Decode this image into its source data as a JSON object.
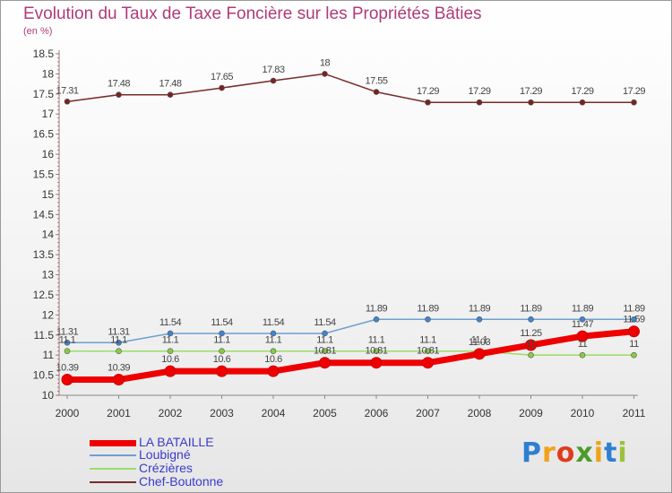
{
  "title": "Evolution du Taux de Taxe Foncière sur les Propriétés Bâties",
  "unit": "(en %)",
  "logo": {
    "letters": [
      {
        "ch": "P",
        "color": "#2f7fd1"
      },
      {
        "ch": "r",
        "color": "#f0a21a"
      },
      {
        "ch": "o",
        "color": "#e03b1e"
      },
      {
        "ch": "x",
        "color": "#4e9a2a"
      },
      {
        "ch": "i",
        "color": "#f0a21a"
      },
      {
        "ch": "t",
        "color": "#2f7fd1"
      },
      {
        "ch": "i",
        "color": "#9bc23c"
      }
    ]
  },
  "chart_data": {
    "type": "line",
    "title": "Evolution du Taux de Taxe Foncière sur les Propriétés Bâties",
    "ylabel": "(en %)",
    "xlabel": "",
    "ylim": [
      10,
      18.5
    ],
    "y_ticks": [
      "10",
      "10.5",
      "11",
      "11.5",
      "12",
      "12.5",
      "13",
      "13.5",
      "14",
      "14.5",
      "15",
      "15.5",
      "16",
      "16.5",
      "17",
      "17.5",
      "18",
      "18.5"
    ],
    "categories": [
      "2000",
      "2001",
      "2002",
      "2003",
      "2004",
      "2005",
      "2006",
      "2007",
      "2008",
      "2009",
      "2010",
      "2011"
    ],
    "legend_position": "bottom-left",
    "series": [
      {
        "name": "LA BATAILLE",
        "color": "#ee0000",
        "width": 7,
        "values": [
          10.39,
          10.39,
          10.6,
          10.6,
          10.6,
          10.81,
          10.81,
          10.81,
          11.03,
          11.25,
          11.47,
          11.59
        ],
        "labels": [
          "10.39",
          "10.39",
          "10.6",
          "10.6",
          "10.6",
          "10.81",
          "10.81",
          "10.81",
          "11.03",
          "11.25",
          "11.47",
          "11.59"
        ]
      },
      {
        "name": "Loubigné",
        "color": "#6e9fd0",
        "width": 1.5,
        "values": [
          11.31,
          11.31,
          11.54,
          11.54,
          11.54,
          11.54,
          11.89,
          11.89,
          11.89,
          11.89,
          11.89,
          11.89
        ],
        "labels": [
          "11.31",
          "11.31",
          "11.54",
          "11.54",
          "11.54",
          "11.54",
          "11.89",
          "11.89",
          "11.89",
          "11.89",
          "11.89",
          "11.89"
        ]
      },
      {
        "name": "Crézières",
        "color": "#99dd66",
        "width": 1.5,
        "values": [
          11.1,
          11.1,
          11.1,
          11.1,
          11.1,
          11.1,
          11.1,
          11.1,
          11.1,
          11,
          11,
          11
        ],
        "labels": [
          "11.1",
          "11.1",
          "11.1",
          "11.1",
          "11.1",
          "11.1",
          "11.1",
          "11.1",
          "11.1",
          "11",
          "11",
          "11"
        ]
      },
      {
        "name": "Chef-Boutonne",
        "color": "#7a2a2a",
        "width": 1.5,
        "values": [
          17.31,
          17.48,
          17.48,
          17.65,
          17.83,
          18,
          17.55,
          17.29,
          17.29,
          17.29,
          17.29,
          17.29
        ],
        "labels": [
          "17.31",
          "17.48",
          "17.48",
          "17.65",
          "17.83",
          "18",
          "17.55",
          "17.29",
          "17.29",
          "17.29",
          "17.29",
          "17.29"
        ]
      }
    ]
  }
}
